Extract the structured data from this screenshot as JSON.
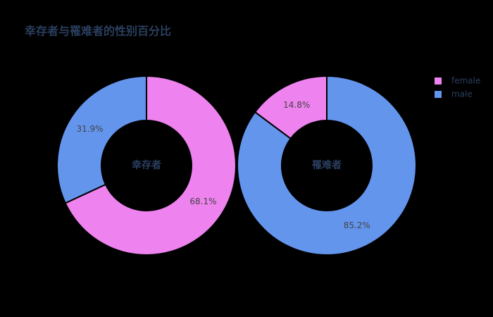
{
  "chart_data": [
    {
      "type": "pie",
      "title": "幸存者与罹难者的性别百分比",
      "annotation": "幸存者",
      "categories": [
        "female",
        "male"
      ],
      "values": [
        68.1,
        31.9
      ],
      "value_labels": [
        "68.1%",
        "31.9%"
      ],
      "colors": [
        "#ee82ee",
        "#6495ed"
      ],
      "legend": "top-right"
    },
    {
      "type": "pie",
      "annotation": "罹难者",
      "categories": [
        "male",
        "female"
      ],
      "values": [
        85.2,
        14.8
      ],
      "value_labels": [
        "85.2%",
        "14.8%"
      ],
      "colors": [
        "#6495ed",
        "#ee82ee"
      ]
    }
  ]
}
